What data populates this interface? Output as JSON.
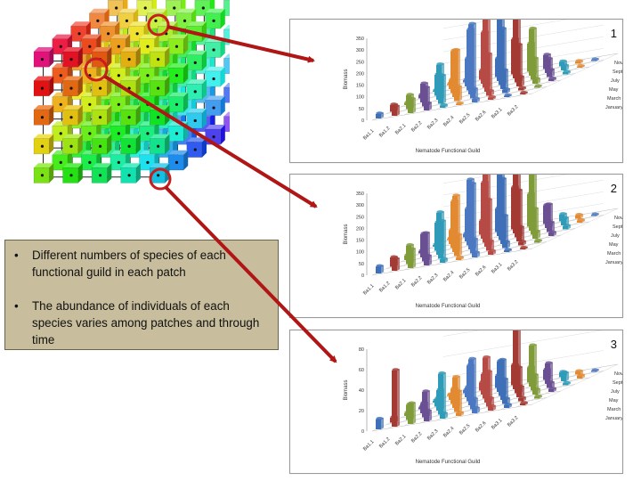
{
  "bullets": [
    {
      "symbol": "•",
      "text": "Different numbers of species of each functional guild in each patch"
    },
    {
      "symbol": "•",
      "text": "The abundance of individuals of each species varies among patches and through time"
    }
  ],
  "panels": [
    {
      "number": "1"
    },
    {
      "number": "2"
    },
    {
      "number": "3"
    }
  ],
  "chart_axes": {
    "xlabel": "Nematode Functional Guild",
    "ylabel": "Biomass",
    "guilds": [
      "Ba1.1",
      "Ba1.2",
      "Ba2.1",
      "Ba2.2",
      "Ba2.3",
      "Ba2.4",
      "Ba2.5",
      "Ba2.6",
      "Ba3.1",
      "Ba3.2"
    ],
    "months": [
      "November",
      "September",
      "July",
      "May",
      "March",
      "January"
    ]
  },
  "chart_data": [
    {
      "type": "bar",
      "title": "",
      "xlabel": "Nematode Functional Guild",
      "ylabel": "Biomass",
      "categories": [
        "Ba1.1",
        "Ba1.2",
        "Ba2.1",
        "Ba2.2",
        "Ba2.3",
        "Ba2.4",
        "Ba2.5",
        "Ba2.6",
        "Ba3.1",
        "Ba3.2"
      ],
      "yticks": [
        0,
        50,
        100,
        150,
        200,
        250,
        300,
        350
      ],
      "ylim": [
        0,
        350
      ],
      "depth_categories": [
        "January",
        "March",
        "May",
        "July",
        "September",
        "November"
      ]
    },
    {
      "type": "bar",
      "title": "",
      "xlabel": "Nematode Functional Guild",
      "ylabel": "Biomass",
      "categories": [
        "Ba1.1",
        "Ba1.2",
        "Ba2.1",
        "Ba2.2",
        "Ba2.3",
        "Ba2.4",
        "Ba2.5",
        "Ba2.6",
        "Ba3.1",
        "Ba3.2"
      ],
      "yticks": [
        0,
        50,
        100,
        150,
        200,
        250,
        300,
        350
      ],
      "ylim": [
        0,
        350
      ],
      "depth_categories": [
        "January",
        "March",
        "May",
        "July",
        "September",
        "November"
      ]
    },
    {
      "type": "bar",
      "title": "",
      "xlabel": "Nematode Functional Guild",
      "ylabel": "Biomass",
      "categories": [
        "Ba1.1",
        "Ba1.2",
        "Ba2.1",
        "Ba2.2",
        "Ba2.3",
        "Ba2.4",
        "Ba2.5",
        "Ba2.6",
        "Ba3.1",
        "Ba3.2"
      ],
      "yticks": [
        0,
        20,
        40,
        60,
        80
      ],
      "ylim": [
        0,
        80
      ],
      "depth_categories": [
        "January",
        "March",
        "May",
        "July",
        "September",
        "November"
      ]
    }
  ],
  "colors": {
    "textbox_bg": "#c8bd9c",
    "arrow": "#b01616",
    "highlight_ring": "#c81e1e"
  }
}
